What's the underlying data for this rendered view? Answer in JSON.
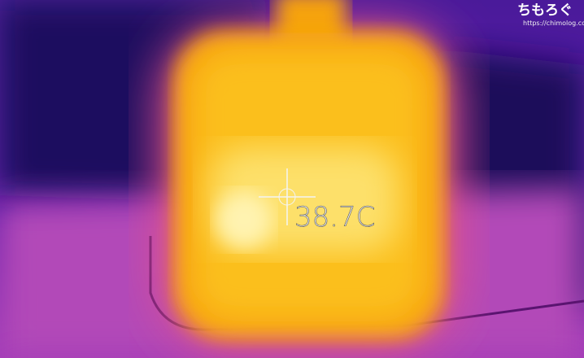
{
  "readout": "38.7C",
  "watermark": {
    "logo": "ちもろぐ",
    "url": "https://chimolog.co/"
  }
}
